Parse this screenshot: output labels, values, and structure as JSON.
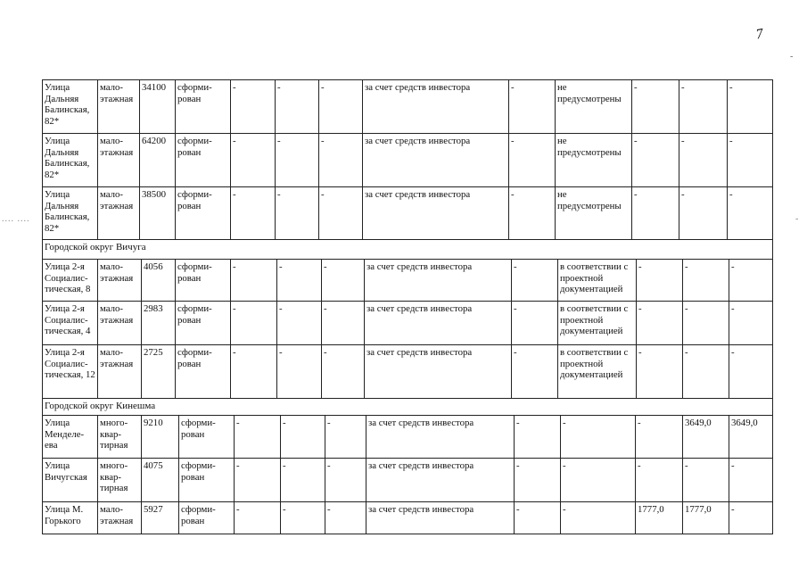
{
  "page_mark": "7",
  "sections": [
    {
      "group": "",
      "rows": [
        [
          "Улица Дальняя Балинская, 82*",
          "мало-этажная",
          "34100",
          "сформи-рован",
          "-",
          "-",
          "-",
          "за счет средств инвестора",
          "-",
          "не предусмотрены",
          "-",
          "-",
          "-"
        ],
        [
          "Улица Дальняя Балинская, 82*",
          "мало-этажная",
          "64200",
          "сформи-рован",
          "-",
          "-",
          "-",
          "за счет средств инвестора",
          "-",
          "не предусмотрены",
          "-",
          "-",
          "-"
        ],
        [
          "Улица Дальняя Балинская, 82*",
          "мало-этажная",
          "38500",
          "сформи-рован",
          "-",
          "-",
          "-",
          "за счет средств инвестора",
          "-",
          "не предусмотрены",
          "-",
          "-",
          "-"
        ]
      ]
    },
    {
      "group": "Городской округ Вичуга",
      "rows": [
        [
          "Улица 2-я Социалис-тическая, 8",
          "мало-этажная",
          "4056",
          "сформи-рован",
          "-",
          "-",
          "-",
          "за счет средств инвестора",
          "-",
          "в соответствии с проектной документацией",
          "-",
          "-",
          "-"
        ],
        [
          "Улица 2-я Социалис-тическая, 4",
          "мало-этажная",
          "2983",
          "сформи-рован",
          "-",
          "-",
          "-",
          "за счет средств инвестора",
          "-",
          "в соответствии с проектной документацией",
          "-",
          "-",
          "-"
        ],
        [
          "Улица 2-я Социалис-тическая, 12",
          "мало-этажная",
          "2725",
          "сформи-рован",
          "-",
          "-",
          "-",
          "за счет средств инвестора",
          "-",
          "в соответствии с проектной документацией",
          "-",
          "-",
          "-"
        ]
      ]
    },
    {
      "group": "Городской округ Кинешма",
      "rows": [
        [
          "Улица Менделе-ева",
          "много-квар-тирная",
          "9210",
          "сформи-рован",
          "-",
          "-",
          "-",
          "за счет средств инвестора",
          "-",
          "-",
          "-",
          "3649,0",
          "3649,0"
        ],
        [
          "Улица Вичугская",
          "много-квар-тирная",
          "4075",
          "сформи-рован",
          "-",
          "-",
          "-",
          "за счет средств инвестора",
          "-",
          "-",
          "-",
          "-",
          "-"
        ],
        [
          "Улица М. Горького",
          "мало-этажная",
          "5927",
          "сформи-рован",
          "-",
          "-",
          "-",
          "за счет средств инвестора",
          "-",
          "-",
          "1777,0",
          "1777,0",
          "-"
        ]
      ]
    }
  ]
}
